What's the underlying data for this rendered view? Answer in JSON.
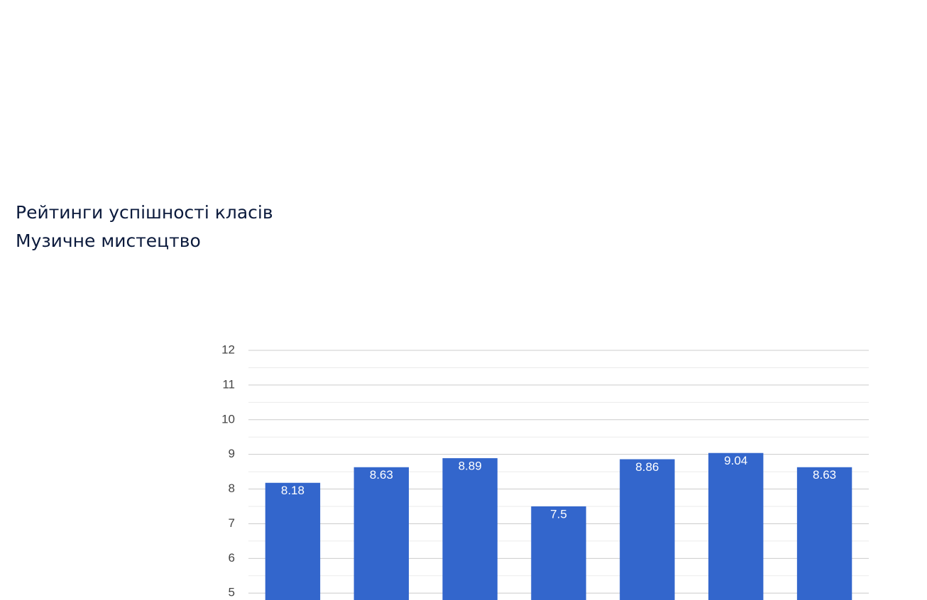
{
  "header": {
    "title": "Рейтинги успішності класів",
    "subtitle": "Музичне мистецтво"
  },
  "chart_data": {
    "type": "bar",
    "categories": [
      null,
      null,
      null,
      null,
      null,
      null,
      null
    ],
    "values": [
      8.18,
      8.63,
      8.89,
      7.5,
      8.86,
      9.04,
      8.63
    ],
    "color": "#3366cc",
    "ylim": [
      4.8,
      12
    ],
    "yticks": [
      5,
      6,
      7,
      8,
      9,
      10,
      11,
      12
    ],
    "minor_yticks": [
      5.5,
      6.5,
      7.5,
      8.5,
      9.5,
      10.5,
      11.5
    ],
    "grid": true
  }
}
